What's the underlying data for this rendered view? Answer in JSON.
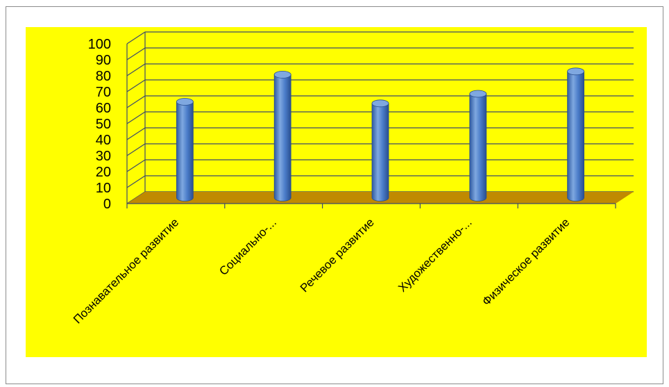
{
  "chart_data": {
    "type": "bar",
    "categories": [
      "Познавательное развитие",
      "Социально-...",
      "Речевое развитие",
      "Художественно-...",
      "Физическое развитие"
    ],
    "values": [
      60,
      77,
      59,
      65,
      79
    ],
    "title": "",
    "xlabel": "",
    "ylabel": "",
    "ylim": [
      0,
      100
    ],
    "yticks": [
      0,
      10,
      20,
      30,
      40,
      50,
      60,
      70,
      80,
      90,
      100
    ],
    "grid": true,
    "legend": "none",
    "colors": {
      "background": "#ffff00",
      "bar_light": "#7fa8e0",
      "bar_mid": "#4a7cc9",
      "bar_dark": "#2a4f8e",
      "floor": "#c08a00",
      "grid": "#3c4a6b"
    }
  }
}
